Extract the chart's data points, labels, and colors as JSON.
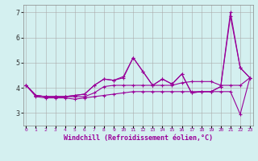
{
  "xlabel": "Windchill (Refroidissement éolien,°C)",
  "background_color": "#d4f0f0",
  "line_color": "#990099",
  "grid_color": "#aaaaaa",
  "xmin": 0,
  "xmax": 23,
  "ymin": 2.5,
  "ymax": 7.3,
  "yticks": [
    3,
    4,
    5,
    6,
    7
  ],
  "lines": [
    [
      4.1,
      3.65,
      3.6,
      3.6,
      3.6,
      3.55,
      3.6,
      3.65,
      3.7,
      3.75,
      3.8,
      3.85,
      3.85,
      3.85,
      3.85,
      3.85,
      3.85,
      3.85,
      3.85,
      3.85,
      3.85,
      3.85,
      2.95,
      4.4
    ],
    [
      4.1,
      3.7,
      3.65,
      3.65,
      3.65,
      3.65,
      3.65,
      3.8,
      4.05,
      4.1,
      4.1,
      4.1,
      4.1,
      4.1,
      4.1,
      4.1,
      4.2,
      4.25,
      4.25,
      4.25,
      4.1,
      4.1,
      4.1,
      4.4
    ],
    [
      4.1,
      3.7,
      3.65,
      3.65,
      3.65,
      3.7,
      3.75,
      4.1,
      4.35,
      4.3,
      4.4,
      5.2,
      4.65,
      4.1,
      4.35,
      4.15,
      4.55,
      3.8,
      3.85,
      3.85,
      4.05,
      6.85,
      4.8,
      4.4
    ],
    [
      4.1,
      3.7,
      3.65,
      3.65,
      3.65,
      3.7,
      3.75,
      4.1,
      4.35,
      4.3,
      4.45,
      5.2,
      4.65,
      4.1,
      4.35,
      4.15,
      4.55,
      3.8,
      3.85,
      3.85,
      4.05,
      7.0,
      4.8,
      4.4
    ]
  ]
}
